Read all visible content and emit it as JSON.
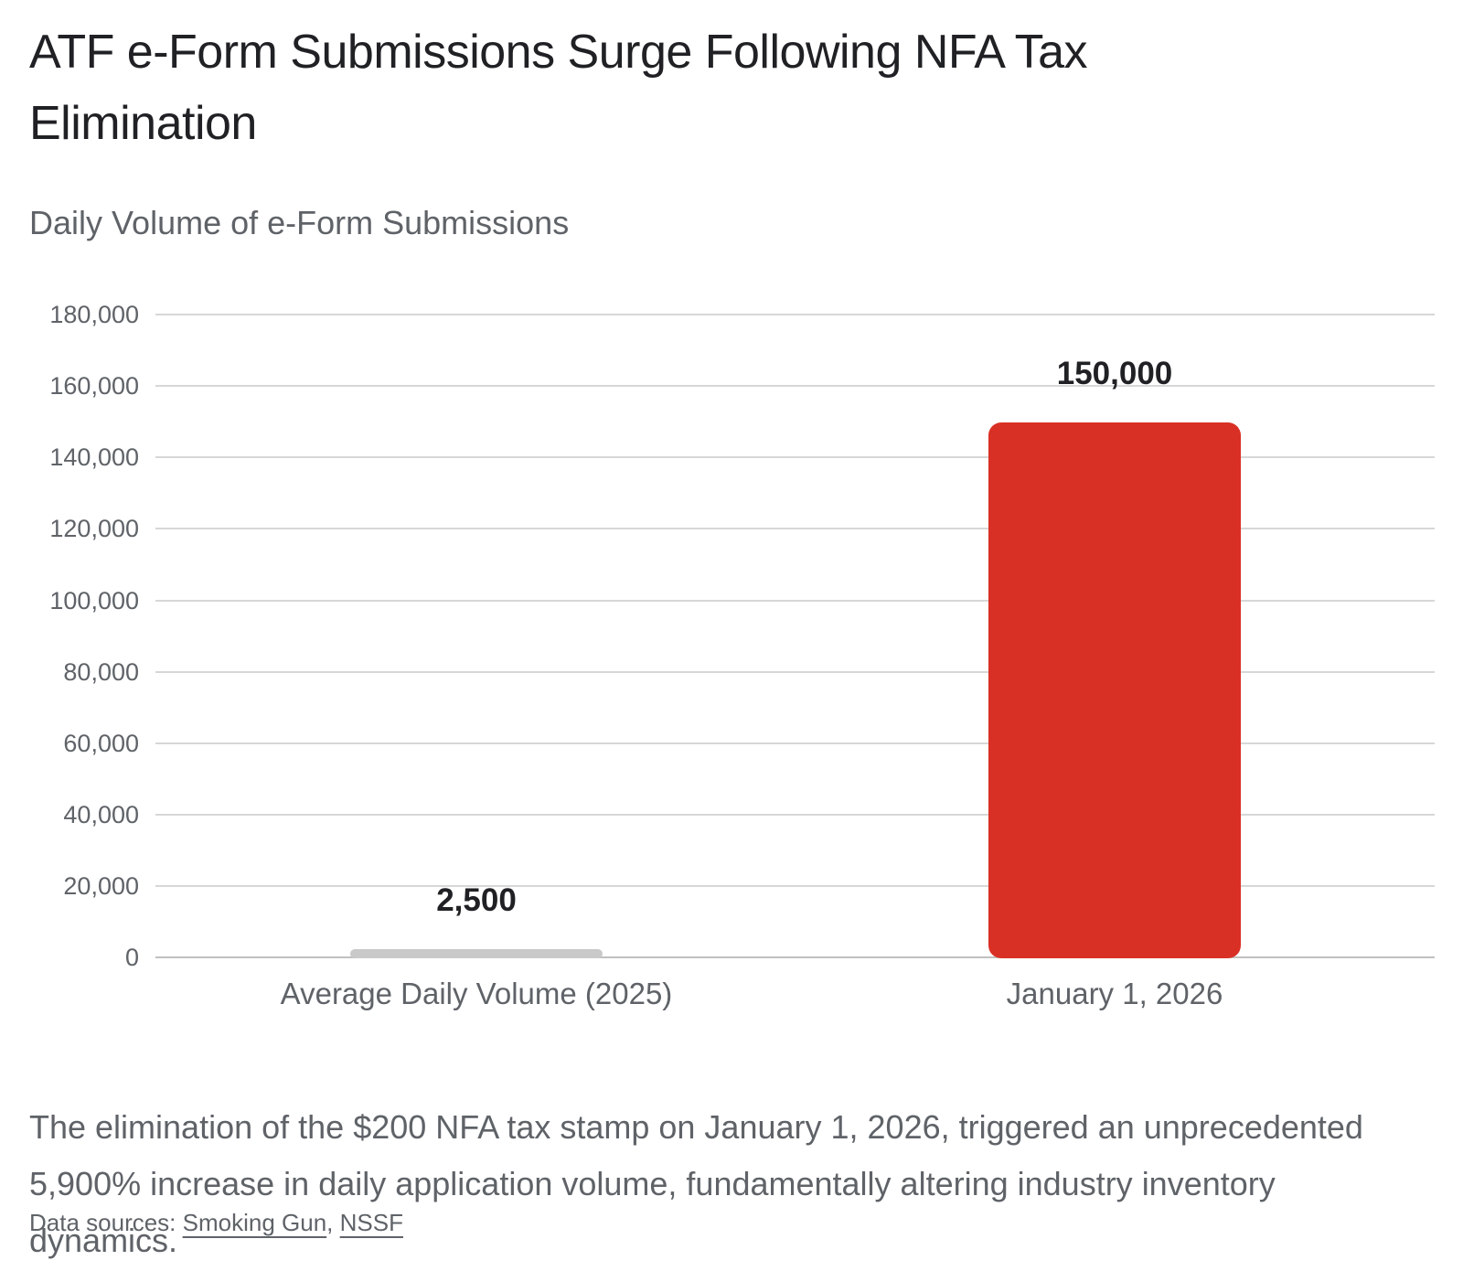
{
  "page": {
    "title": "ATF e-Form Submissions Surge Following NFA Tax Elimination"
  },
  "chart_data": {
    "type": "bar",
    "title": "Daily Volume of e-Form Submissions",
    "categories": [
      "Average Daily Volume (2025)",
      "January 1, 2026"
    ],
    "values": [
      2500,
      150000
    ],
    "value_labels": [
      "2,500",
      "150,000"
    ],
    "bar_colors": [
      "#c9c9c9",
      "#d93025"
    ],
    "ylim": [
      0,
      180000
    ],
    "ytick_interval": 20000,
    "ytick_labels": [
      "0",
      "20,000",
      "40,000",
      "60,000",
      "80,000",
      "100,000",
      "120,000",
      "140,000",
      "160,000",
      "180,000"
    ],
    "grid": true,
    "legend": false
  },
  "note": "The elimination of the $200 NFA tax stamp on January 1, 2026, triggered an unprecedented 5,900% increase in daily application volume, fundamentally altering industry inventory dynamics.",
  "sources": {
    "prefix": "Data sources: ",
    "links": [
      "Smoking Gun",
      "NSSF"
    ],
    "separator": ", "
  },
  "colors": {
    "bar_highlight": "#d93025",
    "bar_muted": "#c9c9c9",
    "title_text": "#202124",
    "secondary_text": "#5f6368",
    "gridline": "#d7d7d7",
    "axis_line": "#c0c0c0"
  }
}
